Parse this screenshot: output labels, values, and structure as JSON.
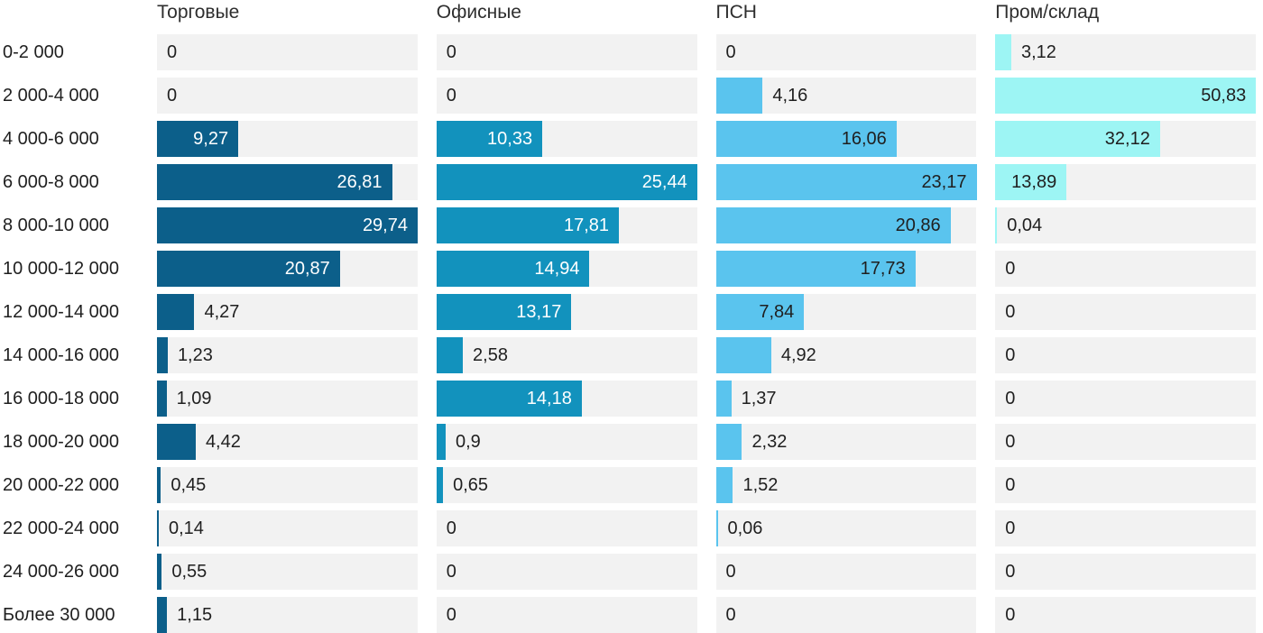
{
  "chart_data": {
    "type": "bar",
    "orientation": "horizontal",
    "scaling": "each column scaled so its own max value fills the full track width",
    "grid": false,
    "track_color": "#f2f2f2",
    "outside_label_color": "#1f1f1f",
    "categories": [
      "0-2 000",
      "2 000-4 000",
      "4 000-6 000",
      "6 000-8 000",
      "8 000-10 000",
      "10 000-12 000",
      "12 000-14 000",
      "14 000-16 000",
      "16 000-18 000",
      "18 000-20 000",
      "20 000-22 000",
      "22 000-24 000",
      "24 000-26 000",
      "Более 30 000"
    ],
    "series": [
      {
        "name": "Торговые",
        "color": "#0c5f8a",
        "inside_label_color": "#ffffff",
        "values": [
          0,
          0,
          9.27,
          26.81,
          29.74,
          20.87,
          4.27,
          1.23,
          1.09,
          4.42,
          0.45,
          0.14,
          0.55,
          1.15
        ],
        "value_labels": [
          "0",
          "0",
          "9,27",
          "26,81",
          "29,74",
          "20,87",
          "4,27",
          "1,23",
          "1,09",
          "4,42",
          "0,45",
          "0,14",
          "0,55",
          "1,15"
        ]
      },
      {
        "name": "Офисные",
        "color": "#1292bd",
        "inside_label_color": "#ffffff",
        "values": [
          0,
          0,
          10.33,
          25.44,
          17.81,
          14.94,
          13.17,
          2.58,
          14.18,
          0.9,
          0.65,
          0,
          0,
          0
        ],
        "value_labels": [
          "0",
          "0",
          "10,33",
          "25,44",
          "17,81",
          "14,94",
          "13,17",
          "2,58",
          "14,18",
          "0,9",
          "0,65",
          "0",
          "0",
          "0"
        ]
      },
      {
        "name": "ПСН",
        "color": "#5ac4ee",
        "inside_label_color": "#1f1f1f",
        "values": [
          0,
          4.16,
          16.06,
          23.17,
          20.86,
          17.73,
          7.84,
          4.92,
          1.37,
          2.32,
          1.52,
          0.06,
          0,
          0
        ],
        "value_labels": [
          "0",
          "4,16",
          "16,06",
          "23,17",
          "20,86",
          "17,73",
          "7,84",
          "4,92",
          "1,37",
          "2,32",
          "1,52",
          "0,06",
          "0",
          "0"
        ]
      },
      {
        "name": "Пром/склад",
        "color": "#9df5f4",
        "inside_label_color": "#1f1f1f",
        "values": [
          3.12,
          50.83,
          32.12,
          13.89,
          0.04,
          0,
          0,
          0,
          0,
          0,
          0,
          0,
          0,
          0
        ],
        "value_labels": [
          "3,12",
          "50,83",
          "32,12",
          "13,89",
          "0,04",
          "0",
          "0",
          "0",
          "0",
          "0",
          "0",
          "0",
          "0",
          "0"
        ]
      }
    ]
  }
}
